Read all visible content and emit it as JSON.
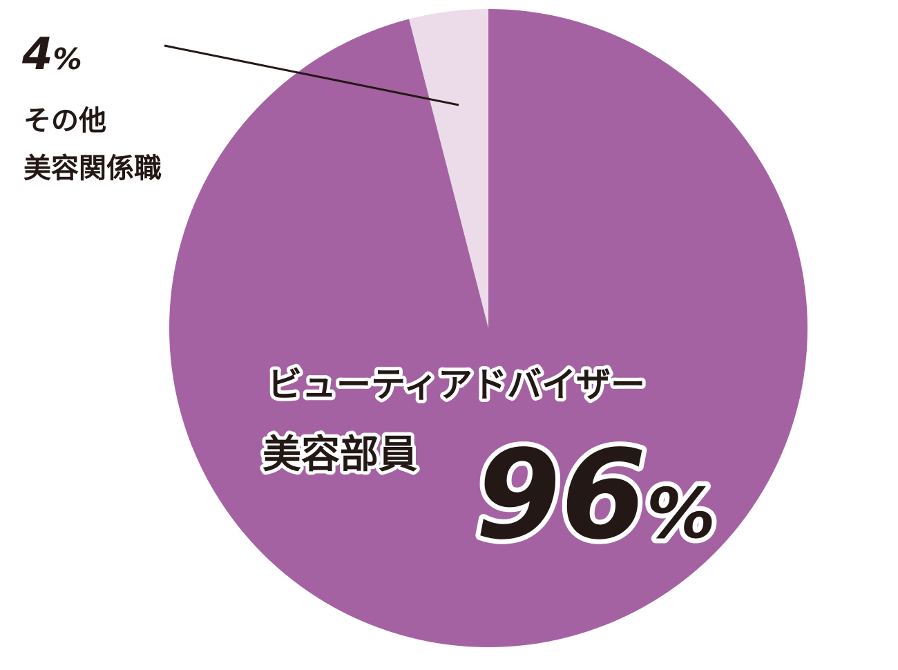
{
  "chart_data": {
    "type": "pie",
    "start_angle_deg": 0,
    "direction": "clockwise",
    "slices": [
      {
        "value": 96,
        "value_label": "96",
        "percent_sign": "%",
        "label_lines": [
          "ビューティアドバイザー",
          "美容部員"
        ],
        "color": "#a462a2"
      },
      {
        "value": 4,
        "value_label": "4",
        "percent_sign": "%",
        "label_lines": [
          "その他",
          "美容関係職"
        ],
        "color": "#ecdcea"
      }
    ],
    "leader_line_color": "#231815",
    "text_color": "#231815"
  }
}
